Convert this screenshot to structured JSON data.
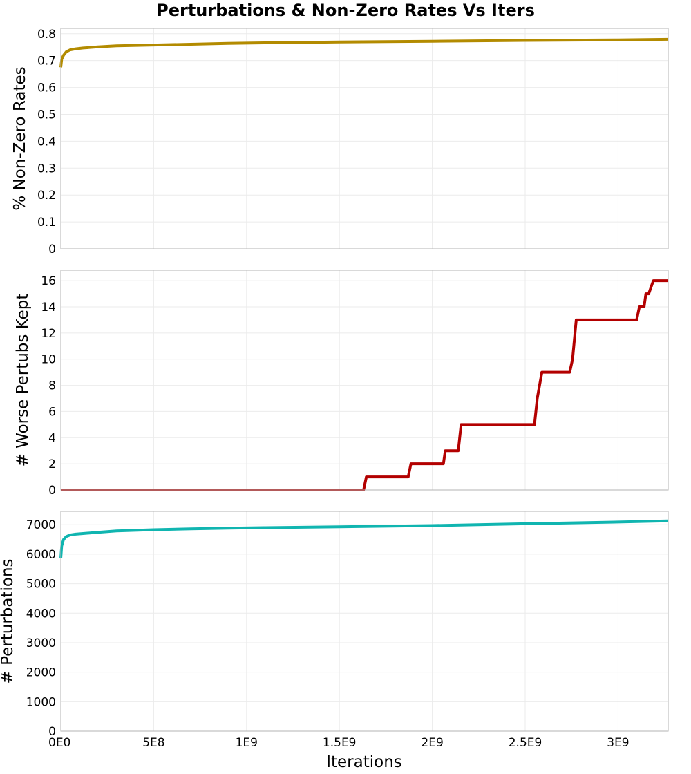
{
  "chart_data": {
    "type": "line",
    "title": "Perturbations & Non-Zero Rates Vs Iters",
    "xlabel": "Iterations",
    "xlim": [
      0,
      3270000000
    ],
    "x_ticks": [
      {
        "value": 0,
        "label": "0E0"
      },
      {
        "value": 500000000,
        "label": "5E8"
      },
      {
        "value": 1000000000,
        "label": "1E9"
      },
      {
        "value": 1500000000,
        "label": "1.5E9"
      },
      {
        "value": 2000000000,
        "label": "2E9"
      },
      {
        "value": 2500000000,
        "label": "2.5E9"
      },
      {
        "value": 3000000000,
        "label": "3E9"
      }
    ],
    "panels": [
      {
        "id": "nonzero",
        "ylabel": "% Non-Zero Rates",
        "ylim": [
          0,
          0.82
        ],
        "y_ticks": [
          {
            "value": 0,
            "label": "0"
          },
          {
            "value": 0.1,
            "label": "0.1"
          },
          {
            "value": 0.2,
            "label": "0.2"
          },
          {
            "value": 0.3,
            "label": "0.3"
          },
          {
            "value": 0.4,
            "label": "0.4"
          },
          {
            "value": 0.5,
            "label": "0.5"
          },
          {
            "value": 0.6,
            "label": "0.6"
          },
          {
            "value": 0.7,
            "label": "0.7"
          },
          {
            "value": 0.8,
            "label": "0.8"
          }
        ],
        "color": "#b38b00",
        "x": [
          0,
          5000000,
          15000000,
          30000000,
          50000000,
          80000000,
          120000000,
          200000000,
          300000000,
          500000000,
          700000000,
          900000000,
          1100000000,
          1500000000,
          2000000000,
          2500000000,
          3000000000,
          3270000000
        ],
        "y": [
          0.675,
          0.705,
          0.72,
          0.733,
          0.74,
          0.744,
          0.747,
          0.751,
          0.755,
          0.758,
          0.761,
          0.764,
          0.766,
          0.769,
          0.772,
          0.775,
          0.777,
          0.779
        ]
      },
      {
        "id": "worse",
        "ylabel": "# Worse Pertubs Kept",
        "ylim": [
          0,
          16.8
        ],
        "y_ticks": [
          {
            "value": 0,
            "label": "0"
          },
          {
            "value": 2,
            "label": "2"
          },
          {
            "value": 4,
            "label": "4"
          },
          {
            "value": 6,
            "label": "6"
          },
          {
            "value": 8,
            "label": "8"
          },
          {
            "value": 10,
            "label": "10"
          },
          {
            "value": 12,
            "label": "12"
          },
          {
            "value": 14,
            "label": "14"
          },
          {
            "value": 16,
            "label": "16"
          }
        ],
        "color": "#b30000",
        "x": [
          0,
          1630000000,
          1645000000,
          1870000000,
          1885000000,
          2060000000,
          2070000000,
          2140000000,
          2155000000,
          2550000000,
          2565000000,
          2590000000,
          2740000000,
          2755000000,
          2775000000,
          3100000000,
          3115000000,
          3140000000,
          3150000000,
          3165000000,
          3190000000,
          3270000000
        ],
        "y": [
          0,
          0,
          1,
          1,
          2,
          2,
          3,
          3,
          5,
          5,
          7,
          9,
          9,
          10,
          13,
          13,
          14,
          14,
          15,
          15,
          16,
          16
        ]
      },
      {
        "id": "perturb",
        "ylabel": "# Perturbations",
        "ylim": [
          0,
          7450
        ],
        "y_ticks": [
          {
            "value": 0,
            "label": "0"
          },
          {
            "value": 1000,
            "label": "1000"
          },
          {
            "value": 2000,
            "label": "2000"
          },
          {
            "value": 3000,
            "label": "3000"
          },
          {
            "value": 4000,
            "label": "4000"
          },
          {
            "value": 5000,
            "label": "5000"
          },
          {
            "value": 6000,
            "label": "6000"
          },
          {
            "value": 7000,
            "label": "7000"
          }
        ],
        "color": "#10b5b0",
        "x": [
          0,
          5000000,
          15000000,
          30000000,
          50000000,
          80000000,
          120000000,
          200000000,
          300000000,
          500000000,
          700000000,
          900000000,
          1100000000,
          1500000000,
          2000000000,
          2500000000,
          3000000000,
          3270000000
        ],
        "y": [
          5860,
          6280,
          6500,
          6600,
          6650,
          6680,
          6700,
          6740,
          6790,
          6830,
          6860,
          6880,
          6900,
          6930,
          6970,
          7030,
          7090,
          7130
        ]
      }
    ]
  }
}
